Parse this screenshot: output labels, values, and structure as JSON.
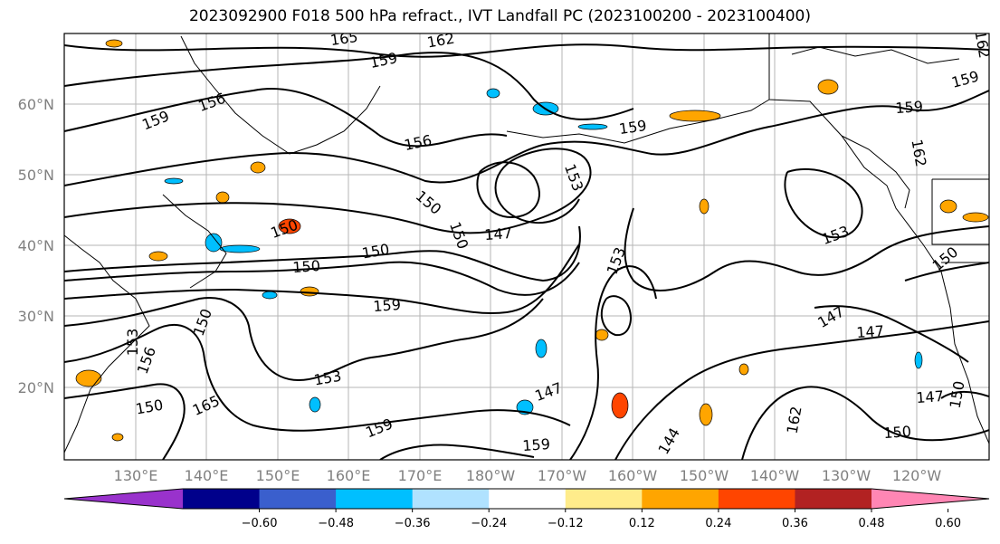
{
  "title": "2023092900 F018 500 hPa refract., IVT Landfall PC (2023100200 - 2023100400)",
  "map": {
    "lat_labels": [
      "60°N",
      "50°N",
      "40°N",
      "30°N",
      "20°N"
    ],
    "lon_labels": [
      "130°E",
      "140°E",
      "150°E",
      "160°E",
      "170°E",
      "180°W",
      "170°W",
      "160°W",
      "150°W",
      "140°W",
      "130°W",
      "120°W"
    ],
    "contour_labels": [
      "165",
      "162",
      "159",
      "156",
      "159",
      "156",
      "159",
      "150",
      "147",
      "150",
      "150",
      "153",
      "153",
      "150",
      "147",
      "153",
      "159",
      "162",
      "159",
      "162",
      "165",
      "150",
      "153",
      "159",
      "150",
      "147",
      "144",
      "150",
      "147",
      "147",
      "150",
      "150",
      "162",
      "159",
      "153",
      "156",
      "159",
      "150"
    ]
  },
  "colorbar": {
    "colors": [
      "#9932CC",
      "#00008B",
      "#3A5FCD",
      "#00BFFF",
      "#B0E2FF",
      "#FFFFFF",
      "#FFEC8B",
      "#FFA500",
      "#FF4500",
      "#B22222",
      "#FF86B4"
    ],
    "tick_labels": [
      "−0.60",
      "−0.48",
      "−0.36",
      "−0.24",
      "−0.12",
      "0.12",
      "0.24",
      "0.36",
      "0.48",
      "0.60"
    ]
  }
}
